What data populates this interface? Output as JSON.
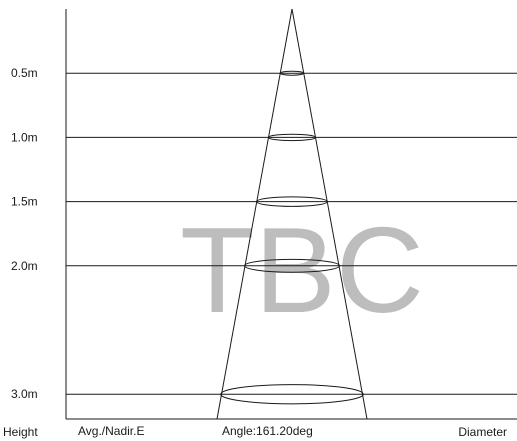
{
  "watermark": "TBC",
  "rows": [
    {
      "height": "0.5m",
      "beam_diameter_m": 0.29
    },
    {
      "height": "1.0m",
      "beam_diameter_m": 0.59
    },
    {
      "height": "1.5m",
      "beam_diameter_m": 0.88
    },
    {
      "height": "2.0m",
      "beam_diameter_m": 1.18
    },
    {
      "height": "3.0m",
      "beam_diameter_m": 1.77
    }
  ],
  "footer": {
    "height_label": "Height",
    "avg_label": "Avg./Nadir.E",
    "angle_label": "Angle:161.20deg",
    "diameter_label": "Diameter"
  },
  "colors": {
    "lines": "#1a1a1a",
    "watermark": "#bdbdbd",
    "background": "#ffffff"
  }
}
